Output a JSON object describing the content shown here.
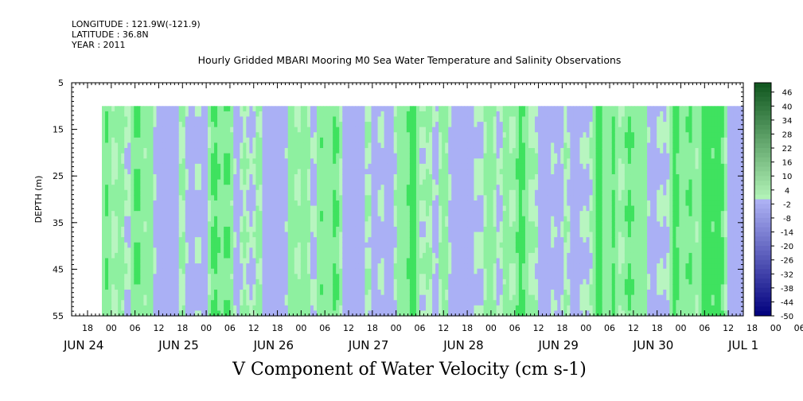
{
  "header": {
    "longitude": "LONGITUDE : 121.9W(-121.9)",
    "latitude": "LATITUDE : 36.8N",
    "year": "YEAR : 2011"
  },
  "chart_data": {
    "type": "heatmap",
    "title": "Hourly Gridded MBARI Mooring M0 Sea Water Temperature and Salinity Observations",
    "xlabel": "V Component of Water Velocity (cm s-1)",
    "ylabel": "DEPTH (m)",
    "ylim": [
      5,
      55
    ],
    "y_inverted": true,
    "y_ticks": [
      5,
      15,
      25,
      35,
      45,
      55
    ],
    "data_depth_range": [
      10,
      55
    ],
    "x_hour_ticks": [
      "18",
      "00",
      "06",
      "12",
      "18",
      "00",
      "06",
      "12",
      "18",
      "00",
      "06",
      "12",
      "18",
      "00",
      "06",
      "12",
      "18",
      "00",
      "06",
      "12",
      "18",
      "00",
      "06",
      "12",
      "18",
      "00",
      "06",
      "12",
      "18",
      "00",
      "06",
      "12"
    ],
    "x_date_labels": [
      "JUN 24",
      "JUN 25",
      "JUN 26",
      "JUN 27",
      "JUN 28",
      "JUN 29",
      "JUN 30",
      "JUL  1"
    ],
    "colorbar": {
      "min": -50,
      "max": 50,
      "step": 2,
      "tick_labels": [
        "46",
        "40",
        "34",
        "28",
        "22",
        "16",
        "10",
        "4",
        "-2",
        "-8",
        "-14",
        "-20",
        "-26",
        "-32",
        "-38",
        "-44",
        "-50"
      ],
      "negative_color": "#aab0f5",
      "positive_color": "#8ef0a0",
      "strong_positive_color": "#3fe25f",
      "weak_positive_color": "#b8f5c0"
    }
  }
}
